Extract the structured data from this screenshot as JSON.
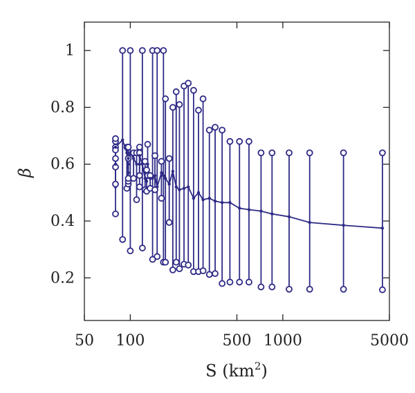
{
  "chart_data": {
    "type": "line",
    "xlabel": "S (km",
    "xlabel_sup": "2",
    "xlabel_close": ")",
    "ylabel": "β",
    "x_scale": "log",
    "xlim": [
      50,
      5000
    ],
    "ylim": [
      0.05,
      1.1
    ],
    "x_ticks": [
      50,
      100,
      500,
      1000,
      5000
    ],
    "x_tick_labels": [
      "50",
      "100",
      "500",
      "1000",
      "5000"
    ],
    "y_ticks": [
      0.2,
      0.4,
      0.6,
      0.8,
      1.0
    ],
    "y_tick_labels": [
      "0.2",
      "0.4",
      "0.6",
      "0.8",
      "1"
    ],
    "grid": false,
    "color": "#2e2a86",
    "series": [
      {
        "x": [
          80,
          80,
          80,
          80,
          89,
          95,
          97,
          97,
          97,
          100,
          105,
          110,
          115,
          115,
          120,
          125,
          128,
          130,
          135,
          140,
          145,
          150,
          160,
          165,
          170,
          180,
          190,
          200,
          210,
          225,
          240,
          260,
          280,
          300,
          330,
          360,
          400,
          450,
          520,
          600,
          720,
          850,
          1100,
          1500,
          2500,
          4500
        ],
        "mean": [
          0.52,
          0.6,
          0.65,
          0.66,
          0.685,
          0.64,
          0.57,
          0.6,
          0.62,
          0.64,
          0.62,
          0.6,
          0.6,
          0.63,
          0.6,
          0.55,
          0.54,
          0.6,
          0.55,
          0.55,
          0.56,
          0.52,
          0.57,
          0.56,
          0.55,
          0.53,
          0.575,
          0.52,
          0.51,
          0.515,
          0.52,
          0.48,
          0.5,
          0.475,
          0.48,
          0.47,
          0.465,
          0.465,
          0.445,
          0.44,
          0.435,
          0.425,
          0.415,
          0.395,
          0.385,
          0.375
        ],
        "upper": [
          0.59,
          0.66,
          0.68,
          0.69,
          1.0,
          0.66,
          0.62,
          0.66,
          0.66,
          1.0,
          0.64,
          0.64,
          0.66,
          0.64,
          1.0,
          0.61,
          0.58,
          0.67,
          0.56,
          1.0,
          0.63,
          1.0,
          0.61,
          1.0,
          0.83,
          0.62,
          0.8,
          0.855,
          0.81,
          0.875,
          0.885,
          0.86,
          0.79,
          0.83,
          0.72,
          0.73,
          0.72,
          0.68,
          0.68,
          0.68,
          0.64,
          0.64,
          0.64,
          0.64,
          0.64,
          0.64
        ],
        "lower": [
          0.425,
          0.53,
          0.62,
          0.65,
          0.335,
          0.515,
          0.53,
          0.54,
          0.55,
          0.295,
          0.55,
          0.475,
          0.52,
          0.56,
          0.305,
          0.51,
          0.505,
          0.56,
          0.515,
          0.265,
          0.51,
          0.275,
          0.48,
          0.255,
          0.255,
          0.395,
          0.228,
          0.255,
          0.232,
          0.248,
          0.245,
          0.222,
          0.222,
          0.225,
          0.212,
          0.215,
          0.18,
          0.185,
          0.185,
          0.185,
          0.168,
          0.168,
          0.16,
          0.16,
          0.16,
          0.158
        ]
      }
    ]
  }
}
